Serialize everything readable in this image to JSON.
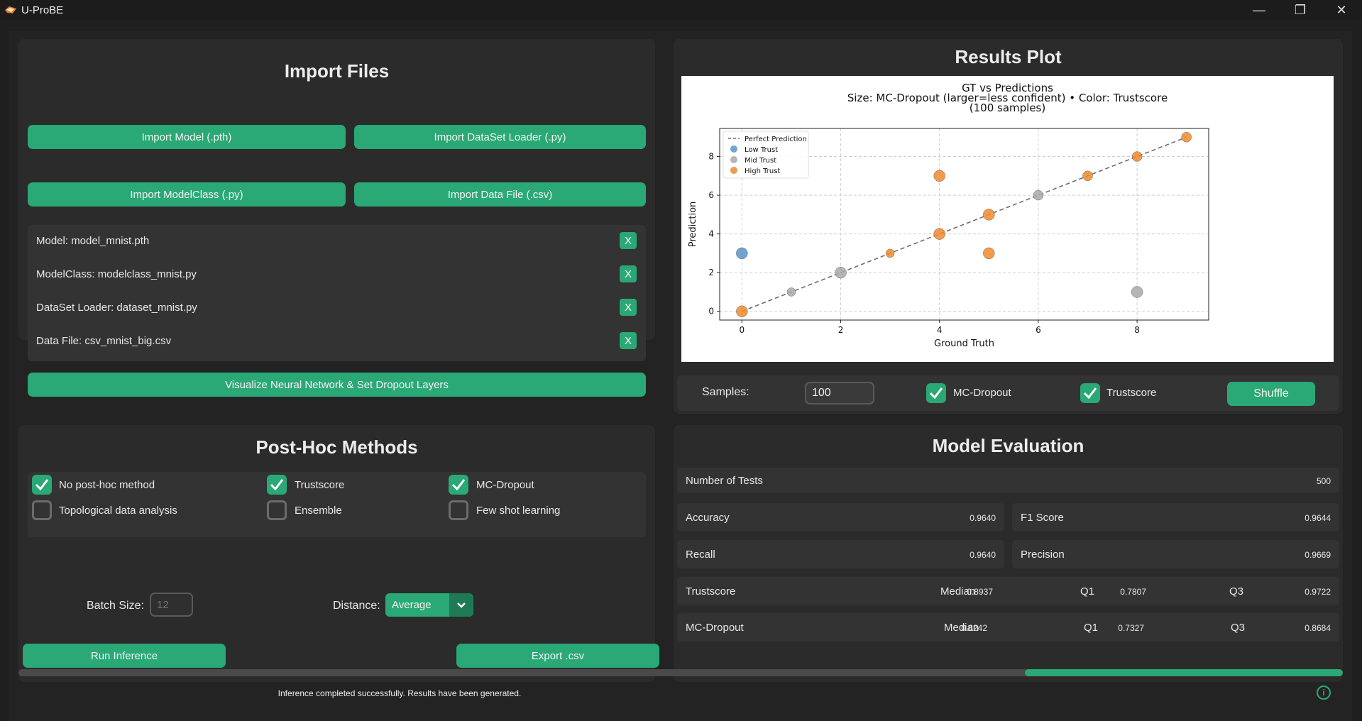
{
  "window": {
    "title": "U-ProBE",
    "minimize": "—",
    "restore": "❐",
    "close": "✕"
  },
  "import_panel": {
    "title": "Import Files",
    "buttons": {
      "import_model": "Import Model (.pth)",
      "import_dataset_loader": "Import DataSet Loader (.py)",
      "import_modelclass": "Import ModelClass (.py)",
      "import_data_file": "Import Data File (.csv)"
    },
    "files": [
      {
        "label": "Model: model_mnist.pth",
        "remove": "X"
      },
      {
        "label": "ModelClass: modelclass_mnist.py",
        "remove": "X"
      },
      {
        "label": "DataSet Loader: dataset_mnist.py",
        "remove": "X"
      },
      {
        "label": "Data File: csv_mnist_big.csv",
        "remove": "X"
      }
    ],
    "visualize_button": "Visualize Neural Network & Set Dropout Layers"
  },
  "results_panel": {
    "title": "Results Plot",
    "controls": {
      "samples_label": "Samples:",
      "samples_value": "100",
      "mc_dropout_label": "MC-Dropout",
      "mc_dropout_checked": true,
      "trustscore_label": "Trustscore",
      "trustscore_checked": true,
      "shuffle": "Shuffle"
    }
  },
  "chart_data": {
    "type": "scatter",
    "title": "GT vs Predictions",
    "subtitle_line1": "Size: MC-Dropout (larger=less confident) • Color: Trustscore",
    "subtitle_line2": "(100 samples)",
    "xlabel": "Ground Truth",
    "ylabel": "Prediction",
    "xlim": [
      -0.45,
      9.45
    ],
    "ylim": [
      -0.45,
      9.45
    ],
    "xticks": [
      0,
      2,
      4,
      6,
      8
    ],
    "yticks": [
      0,
      2,
      4,
      6,
      8
    ],
    "grid": true,
    "legend_position": "top-left",
    "reference_line": {
      "name": "Perfect Prediction",
      "x": [
        0,
        9
      ],
      "y": [
        0,
        9
      ],
      "color": "#6e6e6e"
    },
    "series": [
      {
        "name": "Low Trust",
        "color": "#5b93c8",
        "points": [
          {
            "x": 0,
            "y": 3,
            "size": 8
          }
        ]
      },
      {
        "name": "Mid Trust",
        "color": "#a8a8a8",
        "points": [
          {
            "x": 1,
            "y": 1,
            "size": 6
          },
          {
            "x": 2,
            "y": 2,
            "size": 8
          },
          {
            "x": 6,
            "y": 6,
            "size": 7
          },
          {
            "x": 8,
            "y": 1,
            "size": 8
          }
        ]
      },
      {
        "name": "High Trust",
        "color": "#ef8a2c",
        "points": [
          {
            "x": 0,
            "y": 0,
            "size": 8
          },
          {
            "x": 3,
            "y": 3,
            "size": 6
          },
          {
            "x": 4,
            "y": 4,
            "size": 8
          },
          {
            "x": 4,
            "y": 7,
            "size": 8
          },
          {
            "x": 5,
            "y": 5,
            "size": 8
          },
          {
            "x": 5,
            "y": 3,
            "size": 8
          },
          {
            "x": 7,
            "y": 7,
            "size": 7
          },
          {
            "x": 8,
            "y": 8,
            "size": 7
          },
          {
            "x": 9,
            "y": 9,
            "size": 7
          }
        ]
      }
    ]
  },
  "posthoc_panel": {
    "title": "Post-Hoc Methods",
    "methods": [
      {
        "label": "No post-hoc method",
        "checked": true
      },
      {
        "label": "Trustscore",
        "checked": true
      },
      {
        "label": "MC-Dropout",
        "checked": true
      },
      {
        "label": "Topological data analysis",
        "checked": false
      },
      {
        "label": "Ensemble",
        "checked": false
      },
      {
        "label": "Few shot learning",
        "checked": false
      }
    ],
    "batch_size_label": "Batch Size:",
    "batch_size_placeholder": "12",
    "distance_label": "Distance:",
    "distance_value": "Average",
    "run_inference": "Run Inference",
    "export_csv": "Export .csv"
  },
  "evaluation_panel": {
    "title": "Model Evaluation",
    "number_of_tests_label": "Number of Tests",
    "number_of_tests": "500",
    "accuracy_label": "Accuracy",
    "accuracy": "0.9640",
    "f1_label": "F1 Score",
    "f1": "0.9644",
    "recall_label": "Recall",
    "recall": "0.9640",
    "precision_label": "Precision",
    "precision": "0.9669",
    "trustscore": {
      "label": "Trustscore",
      "median_label": "Median",
      "median": "0.8937",
      "q1_label": "Q1",
      "q1": "0.7807",
      "q3_label": "Q3",
      "q3": "0.9722"
    },
    "mc_dropout": {
      "label": "MC-Dropout",
      "median_label": "Median",
      "median": "0.8242",
      "q1_label": "Q1",
      "q1": "0.7327",
      "q3_label": "Q3",
      "q3": "0.8684"
    }
  },
  "status": {
    "progress": 0.24,
    "message": "Inference completed successfully. Results have been generated.",
    "info_icon": "i",
    "colors": {
      "accent": "#2aa876",
      "track": "#4a4a4a"
    }
  }
}
